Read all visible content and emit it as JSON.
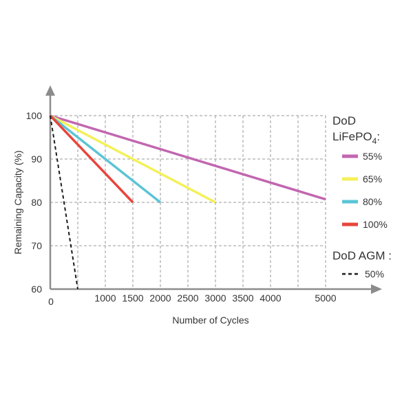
{
  "chart_data": {
    "type": "line",
    "title": "",
    "xlabel": "Number of Cycles",
    "ylabel": "Remaining Capacity (%)",
    "xlim": [
      0,
      5000
    ],
    "ylim": [
      60,
      100
    ],
    "x_ticks": [
      0,
      1000,
      1500,
      2000,
      2500,
      3000,
      3500,
      4000,
      5000
    ],
    "x_tick_labels": [
      "0",
      "1000",
      "1500",
      "2000",
      "2500",
      "3000",
      "3500",
      "4000",
      "5000"
    ],
    "y_ticks": [
      60,
      70,
      80,
      90,
      100
    ],
    "y_tick_labels": [
      "60",
      "70",
      "80",
      "90",
      "100"
    ],
    "grid": true,
    "grid_style": "dashed",
    "legend_position": "right",
    "legend_group_1": {
      "title_line1": "DoD",
      "title_line2_base": "LiFePO",
      "title_line2_sub": "4",
      "title_line2_suffix": ":"
    },
    "legend_group_2": {
      "title": "DoD AGM :"
    },
    "series": [
      {
        "name": "55%",
        "group": "LiFePO4",
        "color": "#c266b0",
        "style": "solid",
        "x": [
          0,
          5000
        ],
        "y": [
          100,
          80.7
        ]
      },
      {
        "name": "65%",
        "group": "LiFePO4",
        "color": "#f4f05a",
        "style": "solid",
        "x": [
          0,
          3000
        ],
        "y": [
          100,
          80
        ]
      },
      {
        "name": "80%",
        "group": "LiFePO4",
        "color": "#5bc4d6",
        "style": "solid",
        "x": [
          0,
          2000
        ],
        "y": [
          100,
          80
        ]
      },
      {
        "name": "100%",
        "group": "LiFePO4",
        "color": "#e8453c",
        "style": "solid",
        "x": [
          0,
          1500
        ],
        "y": [
          100,
          80
        ]
      },
      {
        "name": "50%",
        "group": "AGM",
        "color": "#1a1a1a",
        "style": "dashed",
        "x": [
          0,
          500
        ],
        "y": [
          100,
          60
        ]
      }
    ]
  }
}
